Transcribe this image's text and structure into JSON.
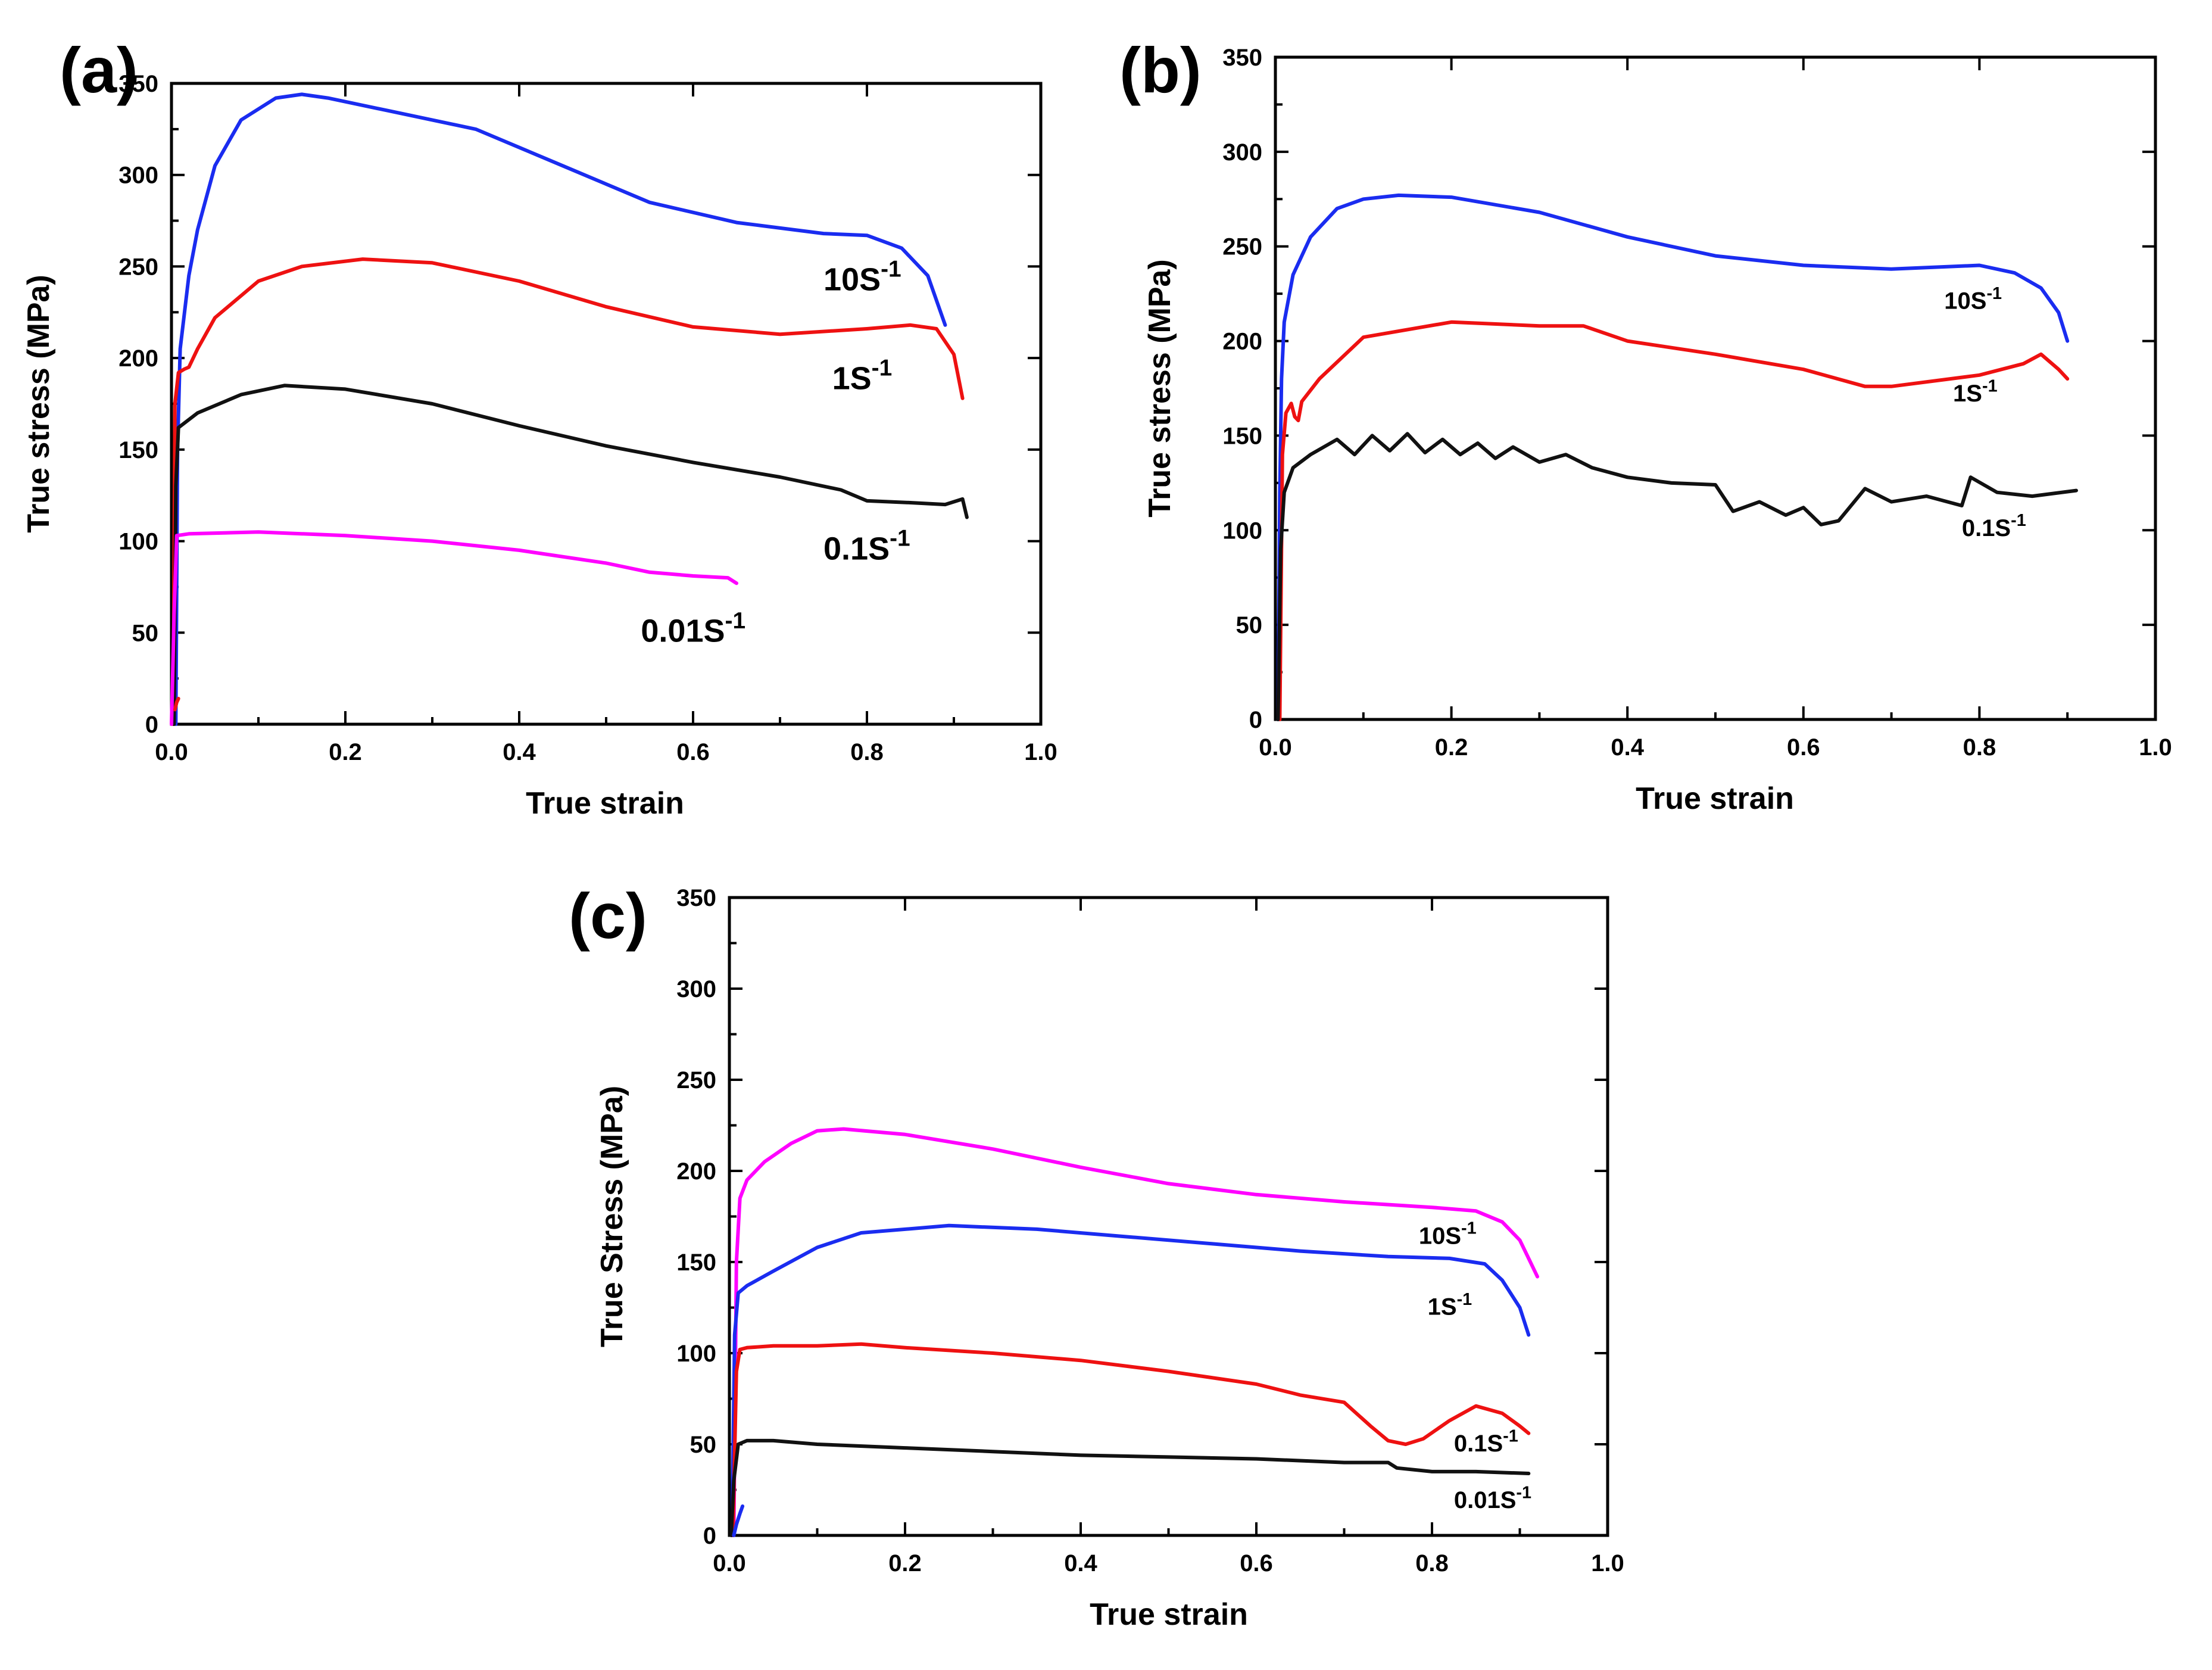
{
  "chart_data": [
    {
      "panel": "(a)",
      "type": "line",
      "xlabel": "True strain",
      "ylabel": "True stress (MPa)",
      "xlim": [
        0,
        1.0
      ],
      "ylim": [
        0,
        350
      ],
      "xticks": [
        "0.0",
        "0.2",
        "0.4",
        "0.6",
        "0.8",
        "1.0"
      ],
      "yticks": [
        "0",
        "50",
        "100",
        "150",
        "200",
        "250",
        "300",
        "350"
      ],
      "series": [
        {
          "name": "10",
          "color": "#1a2cf0",
          "x": [
            0.005,
            0.007,
            0.01,
            0.015,
            0.02,
            0.03,
            0.05,
            0.08,
            0.12,
            0.15,
            0.18,
            0.25,
            0.35,
            0.45,
            0.55,
            0.65,
            0.75,
            0.8,
            0.84,
            0.87,
            0.89
          ],
          "y": [
            0,
            150,
            205,
            225,
            245,
            270,
            305,
            330,
            342,
            344,
            342,
            335,
            325,
            305,
            285,
            274,
            268,
            267,
            260,
            245,
            218
          ]
        },
        {
          "name": "1",
          "color": "#ee1111",
          "x": [
            0.002,
            0.004,
            0.008,
            0.015,
            0.02,
            0.03,
            0.05,
            0.1,
            0.15,
            0.22,
            0.3,
            0.4,
            0.5,
            0.6,
            0.7,
            0.8,
            0.85,
            0.88,
            0.9,
            0.91
          ],
          "y": [
            0,
            175,
            192,
            194,
            195,
            205,
            222,
            242,
            250,
            254,
            252,
            242,
            228,
            217,
            213,
            216,
            218,
            216,
            202,
            178
          ]
        },
        {
          "name": "0.1",
          "color": "#111111",
          "x": [
            0.003,
            0.005,
            0.008,
            0.03,
            0.08,
            0.13,
            0.2,
            0.3,
            0.4,
            0.5,
            0.6,
            0.7,
            0.77,
            0.8,
            0.85,
            0.89,
            0.91,
            0.915
          ],
          "y": [
            0,
            130,
            162,
            170,
            180,
            185,
            183,
            175,
            163,
            152,
            143,
            135,
            128,
            122,
            121,
            120,
            123,
            113
          ]
        },
        {
          "name": "0.01",
          "color": "#ff00ff",
          "x": [
            0.0,
            0.003,
            0.006,
            0.02,
            0.1,
            0.2,
            0.3,
            0.4,
            0.5,
            0.55,
            0.6,
            0.64,
            0.65
          ],
          "y": [
            0,
            60,
            103,
            104,
            105,
            103,
            100,
            95,
            88,
            83,
            81,
            80,
            77
          ]
        },
        {
          "name": "",
          "color": "#ee1111",
          "x": [
            0.004,
            0.006,
            0.008
          ],
          "y": [
            8,
            12,
            14
          ]
        }
      ],
      "labels": [
        {
          "base": "10S",
          "sup": "-1",
          "at": [
            0.75,
            237
          ]
        },
        {
          "base": "1S",
          "sup": "-1",
          "at": [
            0.76,
            183
          ]
        },
        {
          "base": "0.1S",
          "sup": "-1",
          "at": [
            0.75,
            90
          ]
        },
        {
          "base": "0.01S",
          "sup": "-1",
          "at": [
            0.54,
            45
          ]
        }
      ]
    },
    {
      "panel": "(b)",
      "type": "line",
      "xlabel": "True strain",
      "ylabel": "True stress (MPa)",
      "xlim": [
        0,
        1.0
      ],
      "ylim": [
        0,
        350
      ],
      "xticks": [
        "0.0",
        "0.2",
        "0.4",
        "0.6",
        "0.8",
        "1.0"
      ],
      "yticks": [
        "0",
        "50",
        "100",
        "150",
        "200",
        "250",
        "300",
        "350"
      ],
      "series": [
        {
          "name": "10",
          "color": "#1a2cf0",
          "x": [
            0.003,
            0.005,
            0.007,
            0.01,
            0.02,
            0.04,
            0.07,
            0.1,
            0.14,
            0.2,
            0.3,
            0.4,
            0.5,
            0.6,
            0.7,
            0.8,
            0.84,
            0.87,
            0.89,
            0.9
          ],
          "y": [
            0,
            120,
            180,
            210,
            235,
            255,
            270,
            275,
            277,
            276,
            268,
            255,
            245,
            240,
            238,
            240,
            236,
            228,
            215,
            200
          ]
        },
        {
          "name": "1",
          "color": "#ee1111",
          "x": [
            0.005,
            0.008,
            0.012,
            0.018,
            0.022,
            0.026,
            0.03,
            0.05,
            0.1,
            0.2,
            0.3,
            0.35,
            0.4,
            0.5,
            0.6,
            0.67,
            0.7,
            0.8,
            0.85,
            0.87,
            0.89,
            0.9
          ],
          "y": [
            0,
            140,
            162,
            167,
            160,
            158,
            168,
            180,
            202,
            210,
            208,
            208,
            200,
            193,
            185,
            176,
            176,
            182,
            188,
            193,
            185,
            180
          ]
        },
        {
          "name": "0.1",
          "color": "#111111",
          "x": [
            0.003,
            0.006,
            0.01,
            0.02,
            0.04,
            0.07,
            0.09,
            0.11,
            0.13,
            0.15,
            0.17,
            0.19,
            0.21,
            0.23,
            0.25,
            0.27,
            0.3,
            0.33,
            0.36,
            0.4,
            0.45,
            0.5,
            0.52,
            0.55,
            0.58,
            0.6,
            0.62,
            0.64,
            0.67,
            0.7,
            0.74,
            0.78,
            0.79,
            0.82,
            0.86,
            0.91
          ],
          "y": [
            0,
            90,
            120,
            133,
            140,
            148,
            140,
            150,
            142,
            151,
            141,
            148,
            140,
            146,
            138,
            144,
            136,
            140,
            133,
            128,
            125,
            124,
            110,
            115,
            108,
            112,
            103,
            105,
            122,
            115,
            118,
            113,
            128,
            120,
            118,
            121
          ]
        }
      ],
      "labels": [
        {
          "base": "10S",
          "sup": "-1",
          "at": [
            0.76,
            217
          ]
        },
        {
          "base": "1S",
          "sup": "-1",
          "at": [
            0.77,
            168
          ]
        },
        {
          "base": "0.1S",
          "sup": "-1",
          "at": [
            0.78,
            97
          ]
        }
      ]
    },
    {
      "panel": "(c)",
      "type": "line",
      "xlabel": "True strain",
      "ylabel": "True Stress (MPa)",
      "xlim": [
        0,
        1.0
      ],
      "ylim": [
        0,
        350
      ],
      "xticks": [
        "0.0",
        "0.2",
        "0.4",
        "0.6",
        "0.8",
        "1.0"
      ],
      "yticks": [
        "0",
        "50",
        "100",
        "150",
        "200",
        "250",
        "300",
        "350"
      ],
      "series": [
        {
          "name": "10",
          "color": "#ff00ff",
          "x": [
            0.005,
            0.008,
            0.012,
            0.02,
            0.04,
            0.07,
            0.1,
            0.13,
            0.2,
            0.3,
            0.4,
            0.5,
            0.6,
            0.7,
            0.8,
            0.85,
            0.88,
            0.9,
            0.91,
            0.92
          ],
          "y": [
            0,
            150,
            185,
            195,
            205,
            215,
            222,
            223,
            220,
            212,
            202,
            193,
            187,
            183,
            180,
            178,
            172,
            162,
            152,
            142
          ]
        },
        {
          "name": "1",
          "color": "#1a2cf0",
          "x": [
            0.003,
            0.006,
            0.01,
            0.02,
            0.05,
            0.1,
            0.15,
            0.25,
            0.35,
            0.45,
            0.55,
            0.65,
            0.75,
            0.82,
            0.86,
            0.88,
            0.9,
            0.91
          ],
          "y": [
            0,
            110,
            133,
            137,
            145,
            158,
            166,
            170,
            168,
            164,
            160,
            156,
            153,
            152,
            149,
            140,
            125,
            110
          ]
        },
        {
          "name": "0.1",
          "color": "#ee1111",
          "x": [
            0.004,
            0.008,
            0.012,
            0.02,
            0.05,
            0.1,
            0.15,
            0.2,
            0.3,
            0.4,
            0.5,
            0.6,
            0.65,
            0.7,
            0.73,
            0.75,
            0.77,
            0.79,
            0.82,
            0.85,
            0.88,
            0.9,
            0.91
          ],
          "y": [
            0,
            90,
            102,
            103,
            104,
            104,
            105,
            103,
            100,
            96,
            90,
            83,
            77,
            73,
            60,
            52,
            50,
            53,
            63,
            71,
            67,
            60,
            56
          ]
        },
        {
          "name": "0.01",
          "color": "#111111",
          "x": [
            0.002,
            0.005,
            0.01,
            0.02,
            0.05,
            0.1,
            0.2,
            0.3,
            0.4,
            0.5,
            0.6,
            0.7,
            0.75,
            0.76,
            0.8,
            0.85,
            0.91
          ],
          "y": [
            0,
            30,
            50,
            52,
            52,
            50,
            48,
            46,
            44,
            43,
            42,
            40,
            40,
            37,
            35,
            35,
            34
          ]
        },
        {
          "name": "",
          "color": "#1a2cf0",
          "x": [
            0.005,
            0.008,
            0.012,
            0.015
          ],
          "y": [
            0,
            6,
            12,
            16
          ]
        }
      ],
      "labels": [
        {
          "base": "10S",
          "sup": "-1",
          "at": [
            0.785,
            160
          ]
        },
        {
          "base": "1S",
          "sup": "-1",
          "at": [
            0.795,
            121
          ]
        },
        {
          "base": "0.1S",
          "sup": "-1",
          "at": [
            0.825,
            46
          ]
        },
        {
          "base": "0.01S",
          "sup": "-1",
          "at": [
            0.825,
            15
          ]
        }
      ]
    }
  ]
}
